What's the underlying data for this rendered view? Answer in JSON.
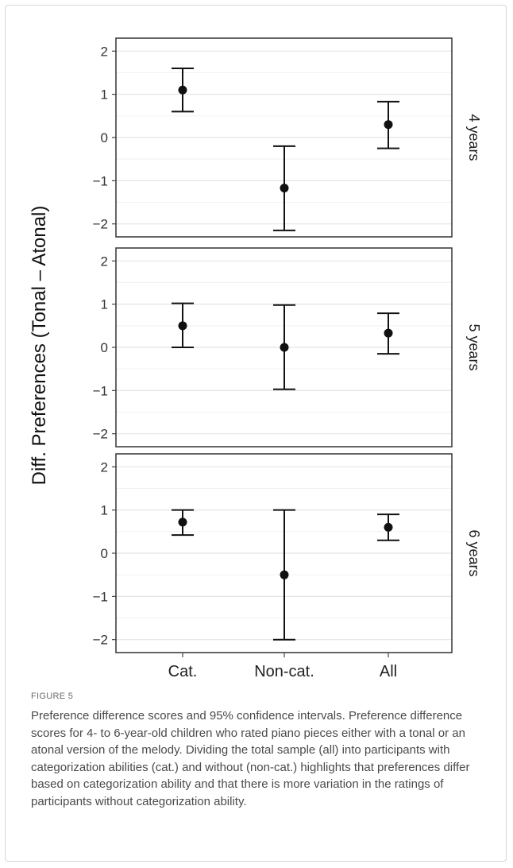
{
  "figure_label": "FIGURE 5",
  "caption": "Preference difference scores and 95% confidence intervals. Preference difference scores for 4- to 6-year-old children who rated piano pieces either with a tonal or an atonal version of the melody. Dividing the total sample (all) into participants with categorization abilities (cat.) and without (non-cat.) highlights that preferences differ based on categorization ability and that there is more variation in the ratings of participants without categorization ability.",
  "chart_data": {
    "type": "scatter",
    "subtype": "errorbar-facets",
    "ylabel": "Diff. Preferences (Tonal – Atonal)",
    "categories": [
      "Cat.",
      "Non-cat.",
      "All"
    ],
    "ylim": [
      -2.3,
      2.3
    ],
    "yticks": [
      -2,
      -1,
      0,
      1,
      2
    ],
    "ytick_labels": [
      "−2",
      "−1",
      "0",
      "1",
      "2"
    ],
    "grid": true,
    "facets": [
      {
        "label": "4 years",
        "points": [
          {
            "category": "Cat.",
            "mean": 1.1,
            "lower": 0.6,
            "upper": 1.6
          },
          {
            "category": "Non-cat.",
            "mean": -1.17,
            "lower": -2.15,
            "upper": -0.2
          },
          {
            "category": "All",
            "mean": 0.3,
            "lower": -0.25,
            "upper": 0.83
          }
        ]
      },
      {
        "label": "5 years",
        "points": [
          {
            "category": "Cat.",
            "mean": 0.5,
            "lower": 0.0,
            "upper": 1.02
          },
          {
            "category": "Non-cat.",
            "mean": 0.0,
            "lower": -0.97,
            "upper": 0.98
          },
          {
            "category": "All",
            "mean": 0.33,
            "lower": -0.15,
            "upper": 0.79
          }
        ]
      },
      {
        "label": "6 years",
        "points": [
          {
            "category": "Cat.",
            "mean": 0.72,
            "lower": 0.42,
            "upper": 1.0
          },
          {
            "category": "Non-cat.",
            "mean": -0.5,
            "lower": -2.0,
            "upper": 1.0
          },
          {
            "category": "All",
            "mean": 0.6,
            "lower": 0.3,
            "upper": 0.9
          }
        ]
      }
    ]
  }
}
